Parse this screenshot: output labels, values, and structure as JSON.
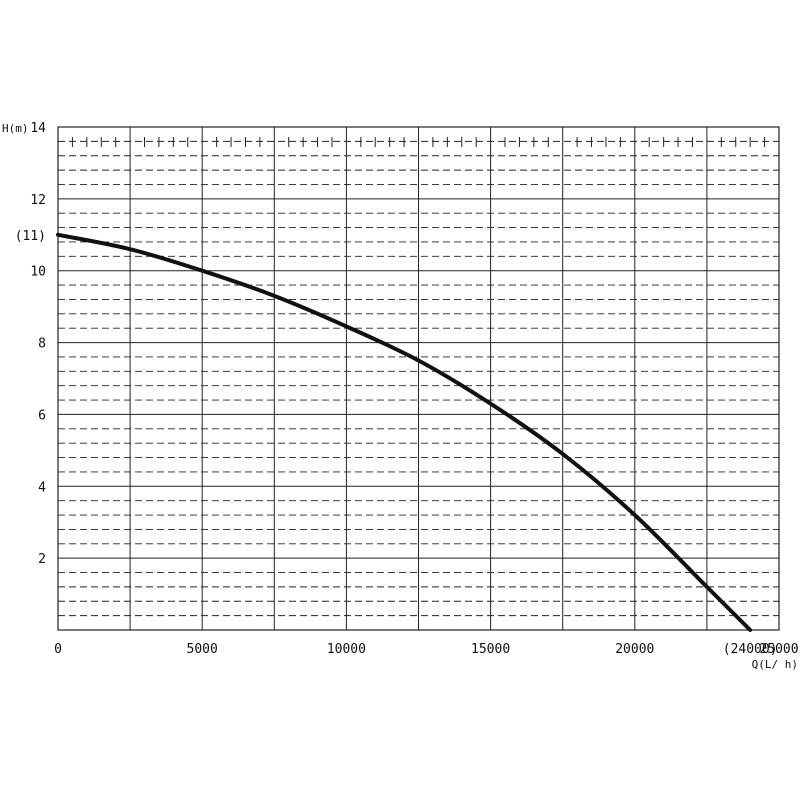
{
  "chart_data": {
    "type": "line",
    "title": "",
    "xlabel": "Q(L/ h)",
    "ylabel": "H(m)",
    "xlim": [
      0,
      25000
    ],
    "ylim": [
      0,
      14
    ],
    "x_ticks": [
      {
        "value": 0,
        "label": "0"
      },
      {
        "value": 5000,
        "label": "5000"
      },
      {
        "value": 10000,
        "label": "10000"
      },
      {
        "value": 15000,
        "label": "15000"
      },
      {
        "value": 20000,
        "label": "20000"
      },
      {
        "value": 24000,
        "label": "(24000)"
      },
      {
        "value": 25000,
        "label": "25000"
      }
    ],
    "y_ticks": [
      {
        "value": 2,
        "label": "2"
      },
      {
        "value": 4,
        "label": "4"
      },
      {
        "value": 6,
        "label": "6"
      },
      {
        "value": 8,
        "label": "8"
      },
      {
        "value": 10,
        "label": "10"
      },
      {
        "value": 11,
        "label": "(11)"
      },
      {
        "value": 12,
        "label": "12"
      },
      {
        "value": 14,
        "label": "14"
      }
    ],
    "grid": true,
    "grid_x_step": 2500,
    "grid_y_major_step": 2,
    "grid_y_minor_step": 0.4,
    "series": [
      {
        "color": "#111111",
        "points": [
          [
            0,
            11.0
          ],
          [
            2500,
            10.6
          ],
          [
            5000,
            10.0
          ],
          [
            7500,
            9.3
          ],
          [
            10000,
            8.45
          ],
          [
            12500,
            7.5
          ],
          [
            15000,
            6.3
          ],
          [
            17500,
            4.9
          ],
          [
            20000,
            3.2
          ],
          [
            22500,
            1.2
          ],
          [
            24000,
            0.0
          ]
        ]
      }
    ]
  }
}
